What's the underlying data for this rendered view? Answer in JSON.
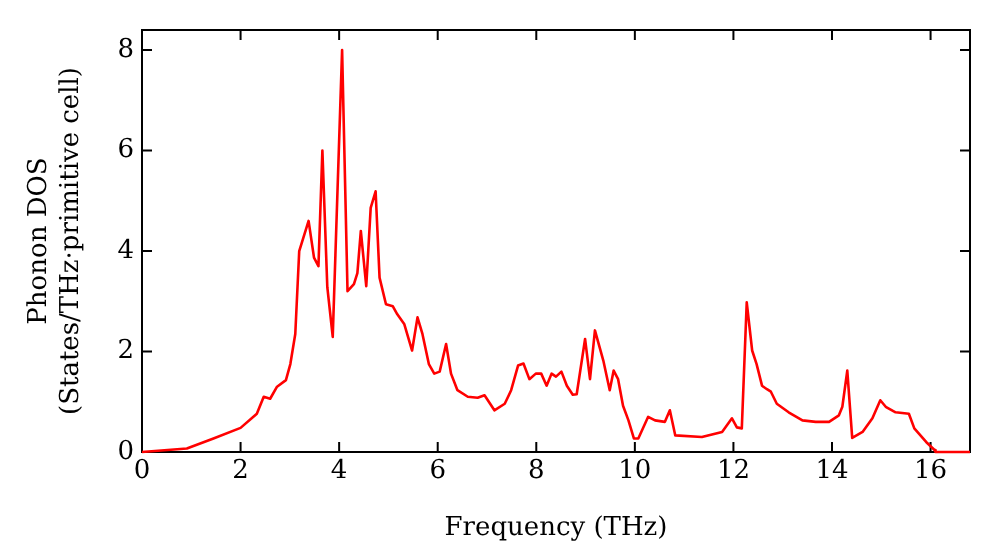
{
  "chart_data": {
    "type": "line",
    "xlabel": "Frequency (THz)",
    "ylabel": "Phonon DOS\n(States/THz·primitive cell)",
    "xlim": [
      0,
      16.8
    ],
    "xticks": [
      0,
      2,
      4,
      6,
      8,
      10,
      12,
      14,
      16
    ],
    "ylim": [
      0,
      8.4
    ],
    "yticks": [
      0,
      2,
      4,
      6,
      8
    ],
    "grid": false,
    "legend": false,
    "marker": "none",
    "line_style": "solid",
    "series": [
      {
        "color": "#ff0000",
        "x": [
          0,
          0.91,
          1.45,
          2.0,
          2.33,
          2.47,
          2.6,
          2.74,
          2.92,
          3.01,
          3.11,
          3.19,
          3.38,
          3.49,
          3.58,
          3.66,
          3.76,
          3.87,
          4.06,
          4.17,
          4.3,
          4.37,
          4.44,
          4.55,
          4.64,
          4.74,
          4.82,
          4.95,
          5.09,
          5.18,
          5.32,
          5.48,
          5.59,
          5.69,
          5.82,
          5.93,
          6.04,
          6.17,
          6.27,
          6.4,
          6.61,
          6.81,
          6.95,
          7.15,
          7.36,
          7.49,
          7.63,
          7.74,
          7.86,
          7.99,
          8.1,
          8.21,
          8.31,
          8.4,
          8.51,
          8.62,
          8.74,
          8.82,
          8.99,
          9.09,
          9.19,
          9.36,
          9.49,
          9.57,
          9.66,
          9.76,
          9.87,
          9.98,
          10.07,
          10.27,
          10.41,
          10.61,
          10.71,
          10.82,
          11.36,
          11.77,
          11.97,
          12.07,
          12.17,
          12.27,
          12.38,
          12.47,
          12.58,
          12.68,
          12.76,
          12.88,
          13.12,
          13.4,
          13.67,
          13.94,
          14.14,
          14.21,
          14.31,
          14.41,
          14.62,
          14.82,
          14.98,
          15.09,
          15.29,
          15.56,
          15.67,
          15.91,
          16.08,
          16.1,
          16.8
        ],
        "values": [
          0,
          0.07,
          0.27,
          0.48,
          0.76,
          1.1,
          1.06,
          1.3,
          1.43,
          1.75,
          2.35,
          4.0,
          4.6,
          3.87,
          3.7,
          6.0,
          3.28,
          2.29,
          8.0,
          3.2,
          3.34,
          3.56,
          4.4,
          3.3,
          4.86,
          5.19,
          3.47,
          2.94,
          2.9,
          2.74,
          2.55,
          2.02,
          2.68,
          2.35,
          1.75,
          1.56,
          1.6,
          2.15,
          1.56,
          1.23,
          1.1,
          1.08,
          1.13,
          0.83,
          0.96,
          1.23,
          1.72,
          1.76,
          1.45,
          1.56,
          1.56,
          1.32,
          1.56,
          1.5,
          1.6,
          1.32,
          1.14,
          1.15,
          2.25,
          1.45,
          2.42,
          1.82,
          1.23,
          1.62,
          1.45,
          0.92,
          0.63,
          0.27,
          0.27,
          0.7,
          0.63,
          0.6,
          0.83,
          0.33,
          0.3,
          0.4,
          0.67,
          0.49,
          0.47,
          2.98,
          2.02,
          1.75,
          1.32,
          1.25,
          1.2,
          0.96,
          0.79,
          0.63,
          0.6,
          0.6,
          0.73,
          0.9,
          1.62,
          0.28,
          0.4,
          0.67,
          1.03,
          0.9,
          0.79,
          0.76,
          0.47,
          0.2,
          0.04,
          0,
          0
        ]
      }
    ]
  }
}
